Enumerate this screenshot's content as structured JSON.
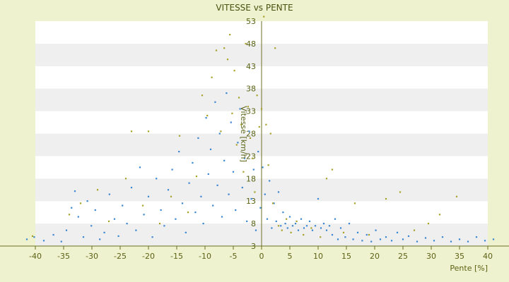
{
  "chart_data": {
    "type": "scatter",
    "title": "VITESSE vs PENTE",
    "xlabel": "Pente [%]",
    "ylabel": "Vitesse [km/h]",
    "xlim": [
      -42,
      42
    ],
    "ylim": [
      3,
      53
    ],
    "x_ticks": [
      -40,
      -35,
      -30,
      -25,
      -20,
      -15,
      -10,
      -5,
      0,
      5,
      10,
      15,
      20,
      25,
      30,
      35,
      40
    ],
    "y_ticks": [
      3,
      8,
      13,
      18,
      23,
      28,
      33,
      38,
      43,
      48,
      53
    ],
    "grid": true,
    "legend": "none",
    "colors": {
      "background": "#eef2cf",
      "band_light": "#ffffff",
      "band_dark": "#efefef",
      "axis": "#6b7020",
      "text": "#5a6214",
      "series_primary": "#3a86d0",
      "series_secondary": "#a9a12a"
    },
    "series": [
      {
        "color": "#3a86d0",
        "points": [
          [
            -41.5,
            4.5
          ],
          [
            -40.2,
            5.0
          ],
          [
            -38.5,
            4.2
          ],
          [
            -36.8,
            5.5
          ],
          [
            -35.4,
            4.0
          ],
          [
            -34.5,
            6.5
          ],
          [
            -33.6,
            11.5
          ],
          [
            -33.0,
            15.2
          ],
          [
            -32.4,
            9.5
          ],
          [
            -31.5,
            5.0
          ],
          [
            -30.8,
            13.0
          ],
          [
            -30.1,
            7.5
          ],
          [
            -29.4,
            11.0
          ],
          [
            -28.6,
            4.5
          ],
          [
            -27.8,
            6.0
          ],
          [
            -26.9,
            14.5
          ],
          [
            -26.0,
            9.0
          ],
          [
            -25.3,
            5.2
          ],
          [
            -24.6,
            12.0
          ],
          [
            -23.8,
            8.0
          ],
          [
            -23.0,
            16.0
          ],
          [
            -22.2,
            6.5
          ],
          [
            -21.5,
            20.5
          ],
          [
            -20.8,
            10.0
          ],
          [
            -20.0,
            14.0
          ],
          [
            -19.3,
            5.0
          ],
          [
            -18.6,
            18.0
          ],
          [
            -17.8,
            11.0
          ],
          [
            -17.2,
            7.5
          ],
          [
            -16.5,
            15.5
          ],
          [
            -15.8,
            20.0
          ],
          [
            -15.2,
            9.0
          ],
          [
            -14.6,
            24.0
          ],
          [
            -14.0,
            12.5
          ],
          [
            -13.4,
            6.0
          ],
          [
            -12.8,
            17.0
          ],
          [
            -12.2,
            21.5
          ],
          [
            -11.7,
            10.5
          ],
          [
            -11.2,
            27.0
          ],
          [
            -10.7,
            14.0
          ],
          [
            -10.3,
            8.0
          ],
          [
            -9.8,
            31.5
          ],
          [
            -9.4,
            19.0
          ],
          [
            -9.0,
            24.5
          ],
          [
            -8.6,
            12.0
          ],
          [
            -8.2,
            35.0
          ],
          [
            -7.8,
            16.5
          ],
          [
            -7.4,
            28.0
          ],
          [
            -7.0,
            9.5
          ],
          [
            -6.6,
            22.0
          ],
          [
            -6.2,
            37.0
          ],
          [
            -5.8,
            14.5
          ],
          [
            -5.4,
            30.5
          ],
          [
            -5.0,
            19.5
          ],
          [
            -4.6,
            11.0
          ],
          [
            -4.2,
            26.0
          ],
          [
            -3.8,
            33.5
          ],
          [
            -3.4,
            16.0
          ],
          [
            -3.0,
            22.5
          ],
          [
            -2.6,
            8.5
          ],
          [
            -2.2,
            28.5
          ],
          [
            -1.8,
            13.5
          ],
          [
            -1.4,
            20.0
          ],
          [
            -1.0,
            6.5
          ],
          [
            -0.6,
            24.0
          ],
          [
            -0.2,
            11.5
          ],
          [
            0.2,
            20.5
          ],
          [
            0.6,
            14.5
          ],
          [
            1.0,
            9.0
          ],
          [
            1.4,
            17.5
          ],
          [
            1.8,
            7.0
          ],
          [
            2.2,
            12.5
          ],
          [
            2.6,
            8.5
          ],
          [
            3.0,
            15.0
          ],
          [
            3.4,
            7.5
          ],
          [
            3.8,
            10.5
          ],
          [
            4.2,
            8.0
          ],
          [
            4.6,
            7.0
          ],
          [
            5.0,
            9.5
          ],
          [
            5.5,
            7.5
          ],
          [
            6.0,
            8.0
          ],
          [
            6.5,
            6.5
          ],
          [
            7.0,
            9.0
          ],
          [
            7.5,
            7.0
          ],
          [
            8.0,
            7.5
          ],
          [
            8.5,
            8.5
          ],
          [
            9.0,
            6.5
          ],
          [
            9.5,
            7.5
          ],
          [
            10.0,
            13.5
          ],
          [
            10.5,
            7.0
          ],
          [
            11.0,
            8.0
          ],
          [
            11.5,
            6.5
          ],
          [
            12.0,
            7.5
          ],
          [
            12.5,
            5.5
          ],
          [
            13.0,
            9.0
          ],
          [
            13.5,
            4.5
          ],
          [
            14.0,
            7.0
          ],
          [
            14.8,
            5.0
          ],
          [
            15.5,
            8.0
          ],
          [
            16.2,
            4.5
          ],
          [
            17.0,
            6.0
          ],
          [
            17.8,
            4.2
          ],
          [
            18.6,
            5.5
          ],
          [
            19.4,
            4.0
          ],
          [
            20.2,
            6.5
          ],
          [
            21.0,
            4.5
          ],
          [
            22.0,
            5.0
          ],
          [
            23.0,
            4.2
          ],
          [
            24.0,
            6.0
          ],
          [
            25.0,
            4.5
          ],
          [
            26.0,
            5.2
          ],
          [
            27.5,
            4.0
          ],
          [
            29.0,
            4.8
          ],
          [
            30.5,
            4.2
          ],
          [
            32.0,
            5.0
          ],
          [
            33.5,
            4.0
          ],
          [
            35.0,
            4.5
          ],
          [
            36.5,
            4.0
          ],
          [
            38.0,
            5.0
          ],
          [
            39.5,
            4.2
          ],
          [
            41.0,
            4.5
          ]
        ]
      },
      {
        "color": "#a9a12a",
        "points": [
          [
            -40.5,
            5.2
          ],
          [
            -34.0,
            10.0
          ],
          [
            -32.0,
            12.5
          ],
          [
            -29.0,
            15.5
          ],
          [
            -27.0,
            8.5
          ],
          [
            -24.0,
            18.0
          ],
          [
            -23.0,
            28.5
          ],
          [
            -21.0,
            12.0
          ],
          [
            -20.0,
            28.5
          ],
          [
            -18.0,
            8.0
          ],
          [
            -16.0,
            14.0
          ],
          [
            -14.5,
            27.5
          ],
          [
            -13.0,
            10.5
          ],
          [
            -11.5,
            18.5
          ],
          [
            -10.5,
            36.5
          ],
          [
            -9.6,
            32.0
          ],
          [
            -8.8,
            40.5
          ],
          [
            -8.0,
            46.5
          ],
          [
            -7.2,
            28.5
          ],
          [
            -6.6,
            47.0
          ],
          [
            -6.0,
            44.5
          ],
          [
            -5.6,
            50.0
          ],
          [
            -5.2,
            32.5
          ],
          [
            -4.8,
            42.0
          ],
          [
            -4.4,
            25.5
          ],
          [
            -4.0,
            36.0
          ],
          [
            -3.6,
            30.0
          ],
          [
            -3.2,
            19.5
          ],
          [
            -2.8,
            48.0
          ],
          [
            -2.4,
            34.0
          ],
          [
            -2.0,
            27.0
          ],
          [
            -1.6,
            22.5
          ],
          [
            -1.2,
            15.0
          ],
          [
            -0.8,
            36.5
          ],
          [
            -0.4,
            29.5
          ],
          [
            0.0,
            33.5
          ],
          [
            0.4,
            54.0
          ],
          [
            0.8,
            30.0
          ],
          [
            1.2,
            21.0
          ],
          [
            1.6,
            28.0
          ],
          [
            2.0,
            12.5
          ],
          [
            2.4,
            47.0
          ],
          [
            3.0,
            7.5
          ],
          [
            3.6,
            6.5
          ],
          [
            4.4,
            9.0
          ],
          [
            5.2,
            6.0
          ],
          [
            6.2,
            8.5
          ],
          [
            7.4,
            5.5
          ],
          [
            8.8,
            7.0
          ],
          [
            10.4,
            5.0
          ],
          [
            11.5,
            18.0
          ],
          [
            12.5,
            20.0
          ],
          [
            14.5,
            6.0
          ],
          [
            16.5,
            12.5
          ],
          [
            19.0,
            5.5
          ],
          [
            22.0,
            13.5
          ],
          [
            24.5,
            15.0
          ],
          [
            27.0,
            6.5
          ],
          [
            29.5,
            8.0
          ],
          [
            31.5,
            10.0
          ],
          [
            34.5,
            14.0
          ]
        ]
      }
    ]
  }
}
